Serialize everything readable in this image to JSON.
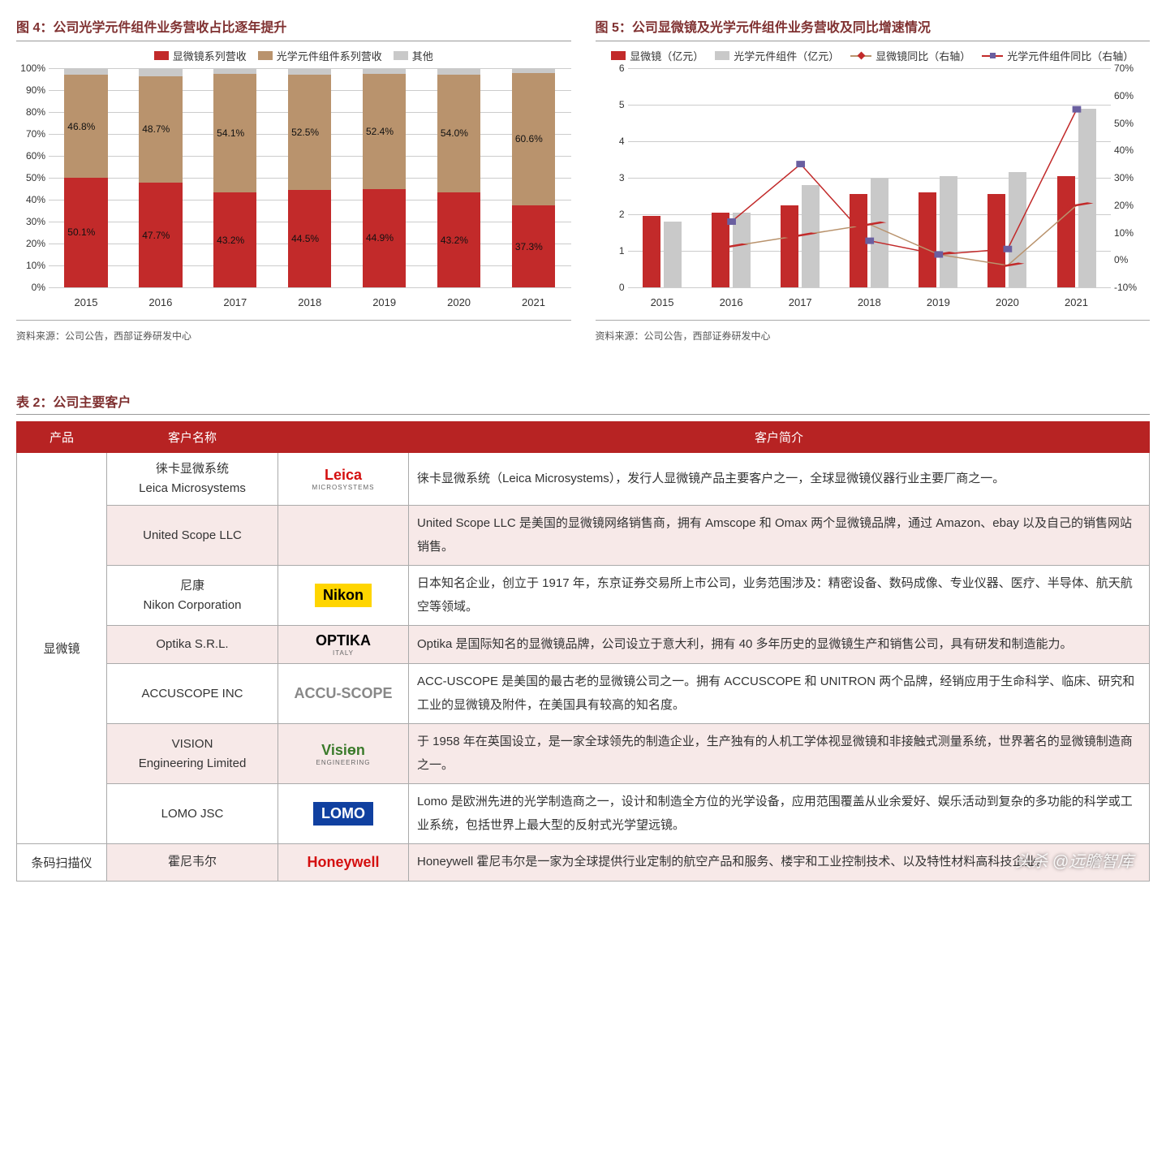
{
  "chart4": {
    "title": "图 4：公司光学元件组件业务营收占比逐年提升",
    "type": "stacked-bar-100",
    "legend": [
      {
        "label": "显微镜系列营收",
        "color": "#c22a2a"
      },
      {
        "label": "光学元件组件系列营收",
        "color": "#b9936d"
      },
      {
        "label": "其他",
        "color": "#c9c9c9"
      }
    ],
    "categories": [
      "2015",
      "2016",
      "2017",
      "2018",
      "2019",
      "2020",
      "2021"
    ],
    "series": {
      "microscope": [
        50.1,
        47.7,
        43.2,
        44.5,
        44.9,
        43.2,
        37.3
      ],
      "optical": [
        46.8,
        48.7,
        54.1,
        52.5,
        52.4,
        54.0,
        60.6
      ],
      "other": [
        3.1,
        3.6,
        2.7,
        3.0,
        2.7,
        2.8,
        2.1
      ]
    },
    "value_labels": {
      "microscope": [
        "50.1%",
        "47.7%",
        "43.2%",
        "44.5%",
        "44.9%",
        "43.2%",
        "37.3%"
      ],
      "optical": [
        "46.8%",
        "48.7%",
        "54.1%",
        "52.5%",
        "52.4%",
        "54.0%",
        "60.6%"
      ]
    },
    "y_ticks": [
      0,
      10,
      20,
      30,
      40,
      50,
      60,
      70,
      80,
      90,
      100
    ],
    "y_tick_labels": [
      "0%",
      "10%",
      "20%",
      "30%",
      "40%",
      "50%",
      "60%",
      "70%",
      "80%",
      "90%",
      "100%"
    ],
    "source": "资料来源：公司公告，西部证券研发中心"
  },
  "chart5": {
    "title": "图 5：公司显微镜及光学元件组件业务营收及同比增速情况",
    "type": "bar-line-dual-axis",
    "legend_bars": [
      {
        "label": "显微镜（亿元）",
        "color": "#c22a2a"
      },
      {
        "label": "光学元件组件（亿元）",
        "color": "#c9c9c9"
      }
    ],
    "legend_lines": [
      {
        "label": "显微镜同比（右轴）",
        "color": "#b9936d",
        "marker": "diamond",
        "marker_color": "#c22a2a"
      },
      {
        "label": "光学元件组件同比（右轴）",
        "color": "#c22a2a",
        "marker": "square",
        "marker_color": "#6a5fa0"
      }
    ],
    "categories": [
      "2015",
      "2016",
      "2017",
      "2018",
      "2019",
      "2020",
      "2021"
    ],
    "bars": {
      "microscope_rev": [
        1.95,
        2.05,
        2.25,
        2.55,
        2.6,
        2.55,
        3.05
      ],
      "optical_rev": [
        1.8,
        2.05,
        2.8,
        3.0,
        3.05,
        3.15,
        4.9
      ]
    },
    "lines": {
      "microscope_yoy": [
        null,
        5,
        9,
        13,
        2,
        -2,
        20
      ],
      "optical_yoy": [
        null,
        14,
        35,
        7,
        2,
        4,
        55
      ]
    },
    "y_left": {
      "min": 0,
      "max": 6,
      "ticks": [
        0,
        1,
        2,
        3,
        4,
        5,
        6
      ]
    },
    "y_right": {
      "min": -10,
      "max": 70,
      "ticks": [
        -10,
        0,
        10,
        20,
        30,
        40,
        50,
        60,
        70
      ],
      "labels": [
        "-10%",
        "0%",
        "10%",
        "20%",
        "30%",
        "40%",
        "50%",
        "60%",
        "70%"
      ]
    },
    "source": "资料来源：公司公告，西部证券研发中心"
  },
  "table": {
    "title": "表 2：公司主要客户",
    "columns": [
      "产品",
      "客户名称",
      "",
      "客户简介"
    ],
    "col_widths": [
      "90px",
      "190px",
      "140px",
      "auto"
    ],
    "header_bg": "#b72323",
    "alt_row_bg": "#f7e9e8",
    "rows": [
      {
        "product": "显微镜",
        "product_rowspan": 7,
        "name_lines": [
          "徕卡显微系统",
          "Leica Microsystems"
        ],
        "logo": {
          "text": "Leica",
          "color": "#d40f0f",
          "sub": "MICROSYSTEMS"
        },
        "desc": "徕卡显微系统（Leica Microsystems），发行人显微镜产品主要客户之一，全球显微镜仪器行业主要厂商之一。",
        "alt": false
      },
      {
        "name_lines": [
          "United Scope LLC"
        ],
        "logo": null,
        "desc": "United Scope LLC 是美国的显微镜网络销售商，拥有 Amscope 和 Omax 两个显微镜品牌，通过 Amazon、ebay 以及自己的销售网站销售。",
        "alt": true
      },
      {
        "name_lines": [
          "尼康",
          "Nikon Corporation"
        ],
        "logo": {
          "text": "Nikon",
          "color": "#000",
          "bg": "#ffd500"
        },
        "desc": "日本知名企业，创立于 1917 年，东京证券交易所上市公司，业务范围涉及：精密设备、数码成像、专业仪器、医疗、半导体、航天航空等领域。",
        "alt": false
      },
      {
        "name_lines": [
          "Optika S.R.L."
        ],
        "logo": {
          "text": "OPTIKA",
          "color": "#000",
          "sub": "ITALY"
        },
        "desc": "Optika 是国际知名的显微镜品牌，公司设立于意大利，拥有 40 多年历史的显微镜生产和销售公司，具有研发和制造能力。",
        "alt": true
      },
      {
        "name_lines": [
          "ACCUSCOPE INC"
        ],
        "logo": {
          "text": "ACCU-SCOPE",
          "color": "#888"
        },
        "desc": "ACC-USCOPE 是美国的最古老的显微镜公司之一。拥有 ACCUSCOPE 和 UNITRON 两个品牌，经销应用于生命科学、临床、研究和工业的显微镜及附件，在美国具有较高的知名度。",
        "alt": false
      },
      {
        "name_lines": [
          "VISION",
          "Engineering Limited"
        ],
        "logo": {
          "text": "Visiөn",
          "color": "#3a7a2a",
          "sub": "ENGINEERING"
        },
        "desc": "于 1958 年在英国设立，是一家全球领先的制造企业，生产独有的人机工学体视显微镜和非接触式测量系统，世界著名的显微镜制造商之一。",
        "alt": true
      },
      {
        "name_lines": [
          "LOMO JSC"
        ],
        "logo": {
          "text": "LOMO",
          "color": "#fff",
          "bg": "#1040a0"
        },
        "desc": "Lomo 是欧洲先进的光学制造商之一，设计和制造全方位的光学设备，应用范围覆盖从业余爱好、娱乐活动到复杂的多功能的科学或工业系统，包括世界上最大型的反射式光学望远镜。",
        "alt": false
      },
      {
        "product": "条码扫描仪",
        "product_rowspan": 1,
        "name_lines": [
          "霍尼韦尔"
        ],
        "logo": {
          "text": "Honeywell",
          "color": "#d40f0f"
        },
        "desc": "Honeywell 霍尼韦尔是一家为全球提供行业定制的航空产品和服务、楼宇和工业控制技术、以及特性材料高科技企业。",
        "alt": true
      }
    ]
  },
  "watermark": "头杀 @远瞻智库"
}
